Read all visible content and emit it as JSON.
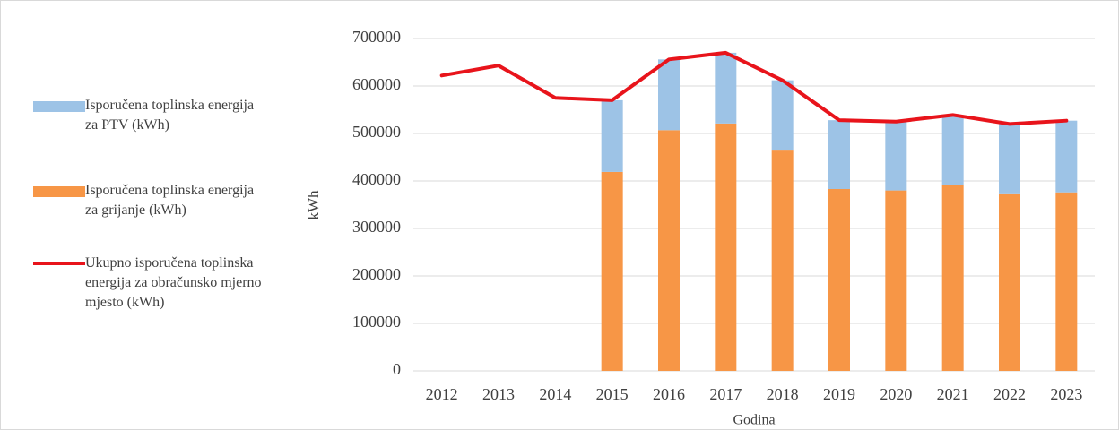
{
  "chart_data": {
    "type": "bar",
    "stacked": true,
    "x_label": "Godina",
    "y_label": "kWh",
    "categories": [
      "2012",
      "2013",
      "2014",
      "2015",
      "2016",
      "2017",
      "2018",
      "2019",
      "2020",
      "2021",
      "2022",
      "2023"
    ],
    "series": [
      {
        "name": "Isporučena toplinska energija za grijanje (kWh)",
        "color": "#f79646",
        "type": "bar",
        "values": [
          null,
          null,
          null,
          419000,
          507000,
          521000,
          464000,
          383000,
          380000,
          392000,
          372000,
          376000
        ]
      },
      {
        "name": "Isporučena toplinska energija za PTV (kWh)",
        "color": "#9dc3e6",
        "type": "bar",
        "values": [
          null,
          null,
          null,
          151000,
          149000,
          149000,
          148000,
          145000,
          145000,
          147000,
          148000,
          151000
        ]
      },
      {
        "name": "Ukupno isporučena toplinska energija za obračunsko mjerno mjesto (kWh)",
        "color": "#e8141b",
        "type": "line",
        "values": [
          622000,
          643000,
          575000,
          570000,
          656000,
          670000,
          612000,
          528000,
          525000,
          539000,
          520000,
          527000
        ]
      }
    ],
    "ylim": [
      0,
      700000
    ],
    "yticks": [
      0,
      100000,
      200000,
      300000,
      400000,
      500000,
      600000,
      700000
    ],
    "grid": true
  }
}
